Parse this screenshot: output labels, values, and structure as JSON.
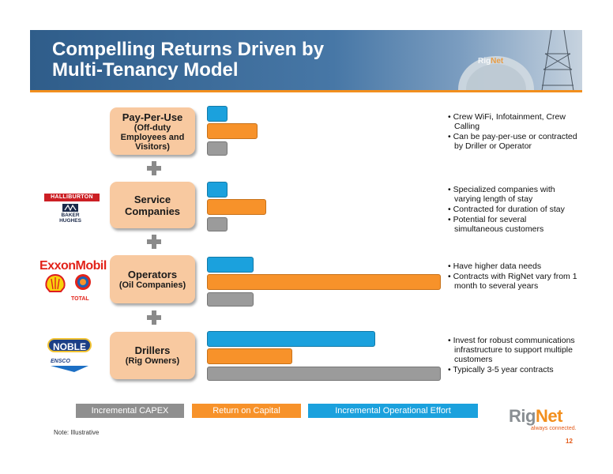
{
  "slide": {
    "title_line1": "Compelling Returns Driven by",
    "title_line2": "Multi-Tenancy Model",
    "note": "Note: Illustrative",
    "page_number": "12"
  },
  "brand": {
    "name_part1": "Rig",
    "name_part2": "Net",
    "tagline": "always connected.",
    "header_logo_part1": "Rig",
    "header_logo_part2": "Net"
  },
  "colors": {
    "blue": "#1ba1dd",
    "orange": "#f7922a",
    "gray": "#9b9b9b",
    "box": "#f8c9a0",
    "banner": "#3d6c9a"
  },
  "categories": [
    {
      "title": "Pay-Per-Use",
      "subtitle_lines": [
        "(Off-duty",
        "Employees and",
        "Visitors)"
      ],
      "operational_effort": 0.02,
      "return_on_capital": 0.16,
      "capex": 0.02,
      "bullets": [
        "Crew WiFi, Infotainment, Crew Calling",
        "Can be pay-per-use or contracted by Driller or Operator"
      ]
    },
    {
      "title": "Service Companies",
      "subtitle_lines": [],
      "operational_effort": 0.02,
      "return_on_capital": 0.2,
      "capex": 0.02,
      "logos": [
        "HALLIBURTON",
        "BAKER",
        "HUGHES"
      ],
      "bullets": [
        "Specialized companies with varying length of stay",
        "Contracted for duration of stay",
        "Potential for several simultaneous customers"
      ]
    },
    {
      "title": "Operators",
      "subtitle_lines": [
        "(Oil Companies)"
      ],
      "operational_effort": 0.14,
      "return_on_capital": 1.0,
      "capex": 0.14,
      "logos": [
        "ExxonMobil",
        "TOTAL"
      ],
      "bullets": [
        "Have higher data needs",
        "Contracts with RigNet vary from 1 month to several years"
      ]
    },
    {
      "title": "Drillers",
      "subtitle_lines": [
        "(Rig Owners)"
      ],
      "operational_effort": 0.7,
      "return_on_capital": 0.32,
      "capex": 1.0,
      "logos": [
        "NOBLE",
        "ENSCO"
      ],
      "bullets": [
        "Invest for robust communications infrastructure to support multiple customers",
        "Typically 3-5 year contracts"
      ]
    }
  ],
  "legend": {
    "capex": "Incremental CAPEX",
    "roc": "Return on Capital",
    "opex": "Incremental Operational Effort"
  }
}
